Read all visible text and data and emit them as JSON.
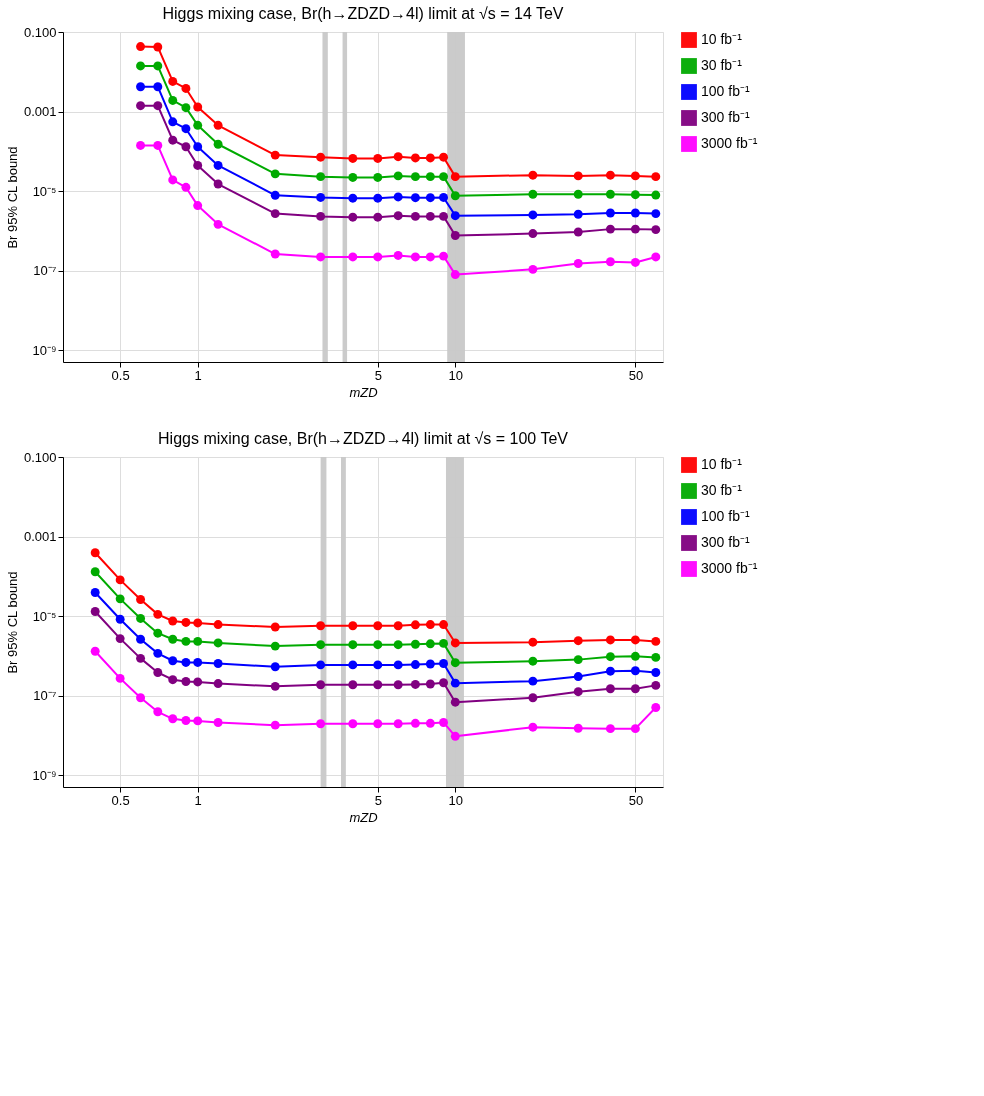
{
  "chart_data": [
    {
      "type": "line",
      "title": "Higgs mixing case, Br(h→ZDZD→4l) limit at √s = 14 TeV",
      "xlabel": "mZD",
      "ylabel": "Br 95% CL bound",
      "x": [
        0.6,
        0.7,
        0.8,
        0.9,
        1,
        1.2,
        2,
        3,
        4,
        5,
        6,
        7,
        8,
        9,
        10,
        20,
        30,
        40,
        50,
        60
      ],
      "series": [
        {
          "name": "10 fb⁻¹",
          "color": "#ff0000",
          "values": [
            0.043,
            0.042,
            0.0057,
            0.0038,
            0.0013,
            0.00045,
            8e-05,
            7.1e-05,
            6.6e-05,
            6.6e-05,
            7.3e-05,
            6.8e-05,
            6.8e-05,
            7.1e-05,
            2.3e-05,
            2.5e-05,
            2.4e-05,
            2.5e-05,
            2.4e-05,
            2.3e-05
          ]
        },
        {
          "name": "30 fb⁻¹",
          "color": "#00aa00",
          "values": [
            0.014,
            0.014,
            0.0019,
            0.00125,
            0.00045,
            0.00015,
            2.7e-05,
            2.3e-05,
            2.2e-05,
            2.2e-05,
            2.4e-05,
            2.3e-05,
            2.3e-05,
            2.3e-05,
            7.6e-06,
            8.3e-06,
            8.3e-06,
            8.3e-06,
            8.1e-06,
            7.9e-06
          ]
        },
        {
          "name": "100 fb⁻¹",
          "color": "#0000ff",
          "values": [
            0.0042,
            0.0042,
            0.00055,
            0.00037,
            0.00013,
            4.4e-05,
            7.8e-06,
            6.9e-06,
            6.6e-06,
            6.6e-06,
            7.1e-06,
            6.8e-06,
            6.8e-06,
            6.9e-06,
            2.4e-06,
            2.5e-06,
            2.6e-06,
            2.8e-06,
            2.8e-06,
            2.7e-06
          ]
        },
        {
          "name": "300 fb⁻¹",
          "color": "#800080",
          "values": [
            0.0014,
            0.0014,
            0.00019,
            0.00013,
            4.4e-05,
            1.5e-05,
            2.7e-06,
            2.3e-06,
            2.2e-06,
            2.2e-06,
            2.4e-06,
            2.3e-06,
            2.3e-06,
            2.3e-06,
            7.6e-07,
            8.5e-07,
            9.3e-07,
            1.1e-06,
            1.1e-06,
            1.07e-06
          ]
        },
        {
          "name": "3000 fb⁻¹",
          "color": "#ff00ff",
          "values": [
            0.00014,
            0.00014,
            1.9e-05,
            1.24e-05,
            4.3e-06,
            1.45e-06,
            2.6e-07,
            2.2e-07,
            2.2e-07,
            2.2e-07,
            2.4e-07,
            2.2e-07,
            2.2e-07,
            2.3e-07,
            7.9e-08,
            1.07e-07,
            1.5e-07,
            1.66e-07,
            1.6e-07,
            2.2e-07
          ]
        }
      ],
      "xlim": [
        0.3,
        64
      ],
      "ylim": [
        5e-10,
        0.1
      ],
      "xticks": [
        0.5,
        1,
        5,
        10,
        50
      ],
      "yticks": [
        {
          "value": 0.1,
          "label": "0.100"
        },
        0.001,
        {
          "value": 1e-05,
          "label": "10⁻⁵"
        },
        {
          "value": 1e-07,
          "label": "10⁻⁷"
        },
        {
          "value": 1e-09,
          "label": "10⁻⁹"
        }
      ],
      "bands": [
        {
          "axis": "x",
          "from": 3.05,
          "to": 3.2,
          "color": "#c8c8c8"
        },
        {
          "axis": "x",
          "from": 3.65,
          "to": 3.8,
          "color": "#c8c8c8"
        },
        {
          "axis": "x",
          "from": 9.3,
          "to": 10.9,
          "color": "#c8c8c8"
        }
      ],
      "log": "xy",
      "grid": true,
      "legend": "right",
      "marker": "circle",
      "line_style": "solid"
    },
    {
      "type": "line",
      "title": "Higgs mixing case, Br(h→ZDZD→4l) limit at √s = 100 TeV",
      "xlabel": "mZD",
      "ylabel": "Br 95% CL bound",
      "x": [
        0.4,
        0.5,
        0.6,
        0.7,
        0.8,
        0.9,
        1,
        1.2,
        2,
        3,
        4,
        5,
        6,
        7,
        8,
        9,
        10,
        20,
        30,
        40,
        50,
        60
      ],
      "series": [
        {
          "name": "10 fb⁻¹",
          "color": "#ff0000",
          "values": [
            0.00039,
            8.1e-05,
            2.6e-05,
            1.1e-05,
            7.5e-06,
            6.9e-06,
            6.7e-06,
            6.1e-06,
            5.3e-06,
            5.7e-06,
            5.7e-06,
            5.7e-06,
            5.7e-06,
            6e-06,
            6.1e-06,
            6.1e-06,
            2.1e-06,
            2.2e-06,
            2.4e-06,
            2.5e-06,
            2.5e-06,
            2.3e-06
          ]
        },
        {
          "name": "30 fb⁻¹",
          "color": "#00aa00",
          "values": [
            0.00013,
            2.7e-05,
            8.7e-06,
            3.7e-06,
            2.6e-06,
            2.3e-06,
            2.3e-06,
            2.1e-06,
            1.75e-06,
            1.9e-06,
            1.9e-06,
            1.9e-06,
            1.9e-06,
            1.95e-06,
            2e-06,
            2.05e-06,
            6.7e-07,
            7.3e-07,
            8e-07,
            9.5e-07,
            9.7e-07,
            9.1e-07
          ]
        },
        {
          "name": "100 fb⁻¹",
          "color": "#0000ff",
          "values": [
            3.9e-05,
            8.3e-06,
            2.6e-06,
            1.15e-06,
            7.5e-07,
            6.8e-07,
            6.8e-07,
            6.4e-07,
            5.3e-07,
            5.9e-07,
            5.9e-07,
            5.9e-07,
            5.9e-07,
            6e-07,
            6.2e-07,
            6.4e-07,
            2.05e-07,
            2.3e-07,
            3e-07,
            4.1e-07,
            4.2e-07,
            3.8e-07
          ]
        },
        {
          "name": "300 fb⁻¹",
          "color": "#800080",
          "values": [
            1.3e-05,
            2.7e-06,
            8.6e-07,
            3.8e-07,
            2.5e-07,
            2.25e-07,
            2.2e-07,
            2e-07,
            1.7e-07,
            1.87e-07,
            1.87e-07,
            1.87e-07,
            1.87e-07,
            1.9e-07,
            1.95e-07,
            2.1e-07,
            6.8e-08,
            8.8e-08,
            1.25e-07,
            1.48e-07,
            1.48e-07,
            1.8e-07
          ]
        },
        {
          "name": "3000 fb⁻¹",
          "color": "#ff00ff",
          "values": [
            1.3e-06,
            2.7e-07,
            8.8e-08,
            3.9e-08,
            2.6e-08,
            2.35e-08,
            2.3e-08,
            2.1e-08,
            1.8e-08,
            1.95e-08,
            1.95e-08,
            1.95e-08,
            1.95e-08,
            2e-08,
            2e-08,
            2.1e-08,
            9.4e-09,
            1.6e-08,
            1.5e-08,
            1.47e-08,
            1.47e-08,
            5e-08
          ]
        }
      ],
      "xlim": [
        0.3,
        64
      ],
      "ylim": [
        5e-10,
        0.1
      ],
      "xticks": [
        0.5,
        1,
        5,
        10,
        50
      ],
      "yticks": [
        {
          "value": 0.1,
          "label": "0.100"
        },
        0.001,
        {
          "value": 1e-05,
          "label": "10⁻⁵"
        },
        {
          "value": 1e-07,
          "label": "10⁻⁷"
        },
        {
          "value": 1e-09,
          "label": "10⁻⁹"
        }
      ],
      "bands": [
        {
          "axis": "x",
          "from": 3.0,
          "to": 3.16,
          "color": "#c8c8c8"
        },
        {
          "axis": "x",
          "from": 3.6,
          "to": 3.76,
          "color": "#c8c8c8"
        },
        {
          "axis": "x",
          "from": 9.2,
          "to": 10.8,
          "color": "#c8c8c8"
        }
      ],
      "log": "xy",
      "grid": true,
      "legend": "right",
      "marker": "circle",
      "line_style": "solid"
    }
  ]
}
